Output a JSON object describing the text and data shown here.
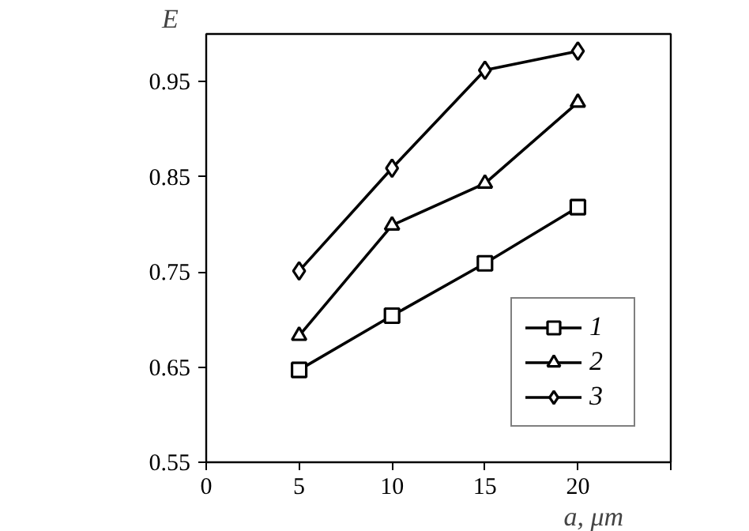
{
  "chart_data": {
    "type": "line",
    "xlabel": "a, μm",
    "ylabel": "E",
    "x": [
      5,
      10,
      15,
      20
    ],
    "series": [
      {
        "name": "1",
        "color": "#000000",
        "marker": "square",
        "values": [
          0.647,
          0.704,
          0.759,
          0.818
        ]
      },
      {
        "name": "2",
        "color": "#000000",
        "marker": "triangle",
        "values": [
          0.683,
          0.799,
          0.843,
          0.928
        ]
      },
      {
        "name": "3",
        "color": "#000000",
        "marker": "diamond",
        "values": [
          0.751,
          0.859,
          0.962,
          0.982
        ]
      }
    ],
    "xlim": [
      0,
      25
    ],
    "xticks": [
      0,
      5,
      10,
      15,
      20,
      {
        "value": 25,
        "label": null
      }
    ],
    "ylim": [
      0.55,
      1.0
    ],
    "yticks": [
      {
        "value": 0.55,
        "label": "0.55"
      },
      {
        "value": 0.65,
        "label": "0.65"
      },
      {
        "value": 0.75,
        "label": "0.75"
      },
      {
        "value": 0.85,
        "label": "0.85"
      },
      {
        "value": 0.95,
        "label": "0.95"
      }
    ],
    "grid": false,
    "legend": "bottom right",
    "line_style": "solid"
  }
}
